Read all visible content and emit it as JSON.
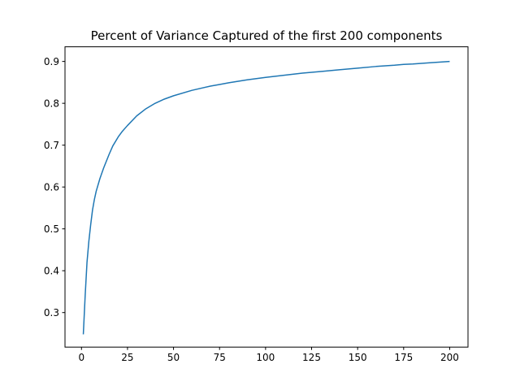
{
  "chart_data": {
    "type": "line",
    "title": "Percent of Variance Captured of the first 200 components",
    "xlabel": "",
    "ylabel": "",
    "xlim": [
      -8.95,
      209.95
    ],
    "ylim": [
      0.2175,
      0.935
    ],
    "xticks": [
      0,
      25,
      50,
      75,
      100,
      125,
      150,
      175,
      200
    ],
    "yticks": [
      0.3,
      0.4,
      0.5,
      0.6,
      0.7,
      0.8,
      0.9
    ],
    "grid": false,
    "series": [
      {
        "color": "#1f77b4",
        "x": [
          1,
          2,
          3,
          4,
          5,
          6,
          7,
          8,
          10,
          12,
          15,
          17,
          20,
          22,
          25,
          30,
          35,
          40,
          45,
          50,
          60,
          70,
          75,
          80,
          90,
          100,
          110,
          120,
          125,
          130,
          140,
          150,
          160,
          170,
          175,
          180,
          190,
          200
        ],
        "y": [
          0.248,
          0.34,
          0.42,
          0.47,
          0.51,
          0.545,
          0.57,
          0.59,
          0.62,
          0.645,
          0.678,
          0.698,
          0.72,
          0.732,
          0.747,
          0.77,
          0.787,
          0.8,
          0.81,
          0.818,
          0.831,
          0.841,
          0.845,
          0.849,
          0.856,
          0.862,
          0.867,
          0.872,
          0.874,
          0.876,
          0.88,
          0.884,
          0.888,
          0.891,
          0.893,
          0.894,
          0.897,
          0.9
        ]
      }
    ]
  }
}
